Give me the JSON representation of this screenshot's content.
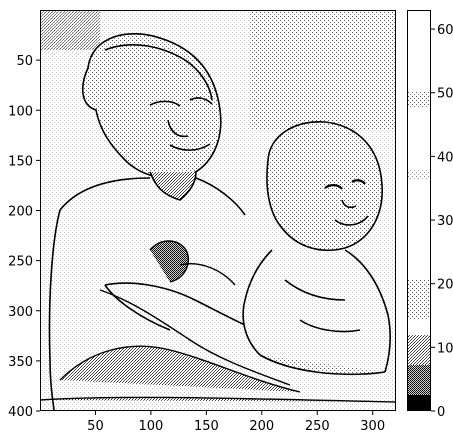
{
  "chart_data": {
    "type": "heatmap",
    "image_extent": {
      "x": [
        0,
        321
      ],
      "y": [
        0,
        400
      ]
    },
    "colormap": "gray_r (halftone/dithered rendering)",
    "x_ticks": [
      50,
      100,
      150,
      200,
      250,
      300
    ],
    "y_ticks": [
      50,
      100,
      150,
      200,
      250,
      300,
      350,
      400
    ],
    "colorbar": {
      "range": [
        0,
        63
      ],
      "ticks": [
        0,
        10,
        20,
        30,
        40,
        50,
        60
      ]
    },
    "content": "edge-detected image of two children (older boy holding a baby)",
    "title": "",
    "xlabel": "",
    "ylabel": ""
  },
  "colors": {
    "frame": "#000000",
    "background": "#ffffff",
    "ink": "#000000"
  }
}
